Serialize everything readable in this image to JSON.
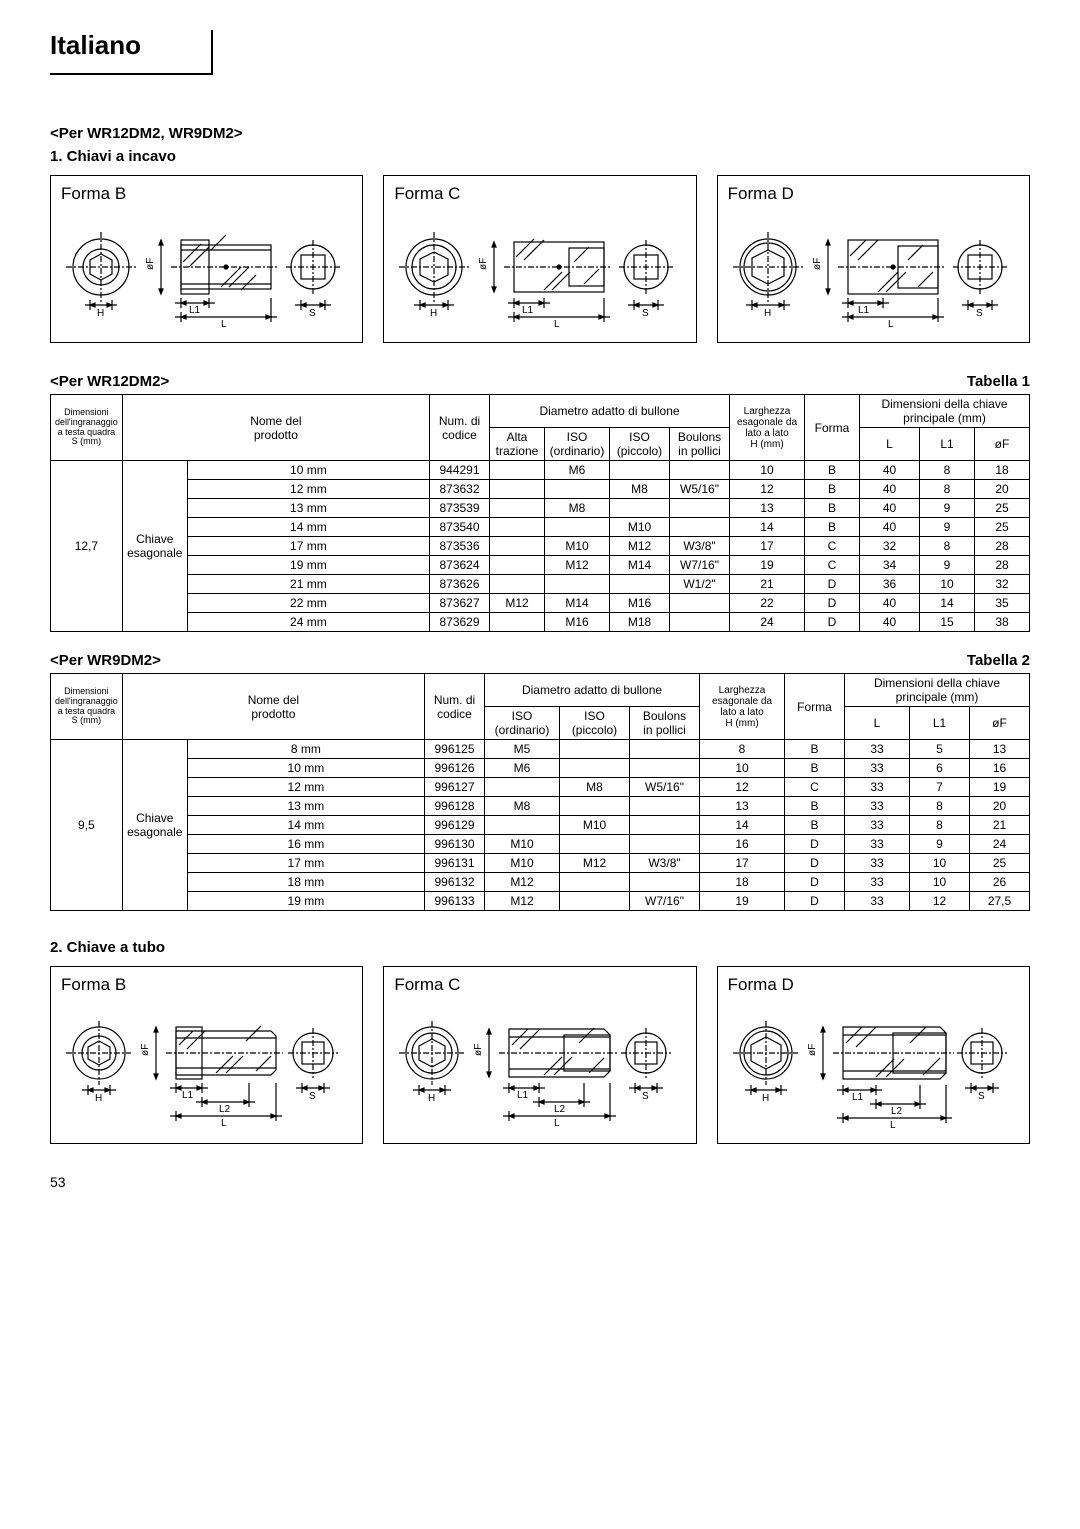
{
  "page": {
    "language_header": "Italiano",
    "page_number": "53"
  },
  "section1": {
    "title": "<Per WR12DM2, WR9DM2>",
    "subtitle": "1.  Chiavi a incavo",
    "forms": {
      "b": "Forma B",
      "c": "Forma C",
      "d": "Forma D"
    },
    "dim_labels": {
      "of": "øF",
      "h": "H",
      "l1": "L1",
      "l": "L",
      "s": "S"
    }
  },
  "table1": {
    "header_left": "<Per WR12DM2>",
    "header_right": "Tabella 1",
    "headers": {
      "col1_l1": "Dimensioni",
      "col1_l2": "dell'ingranaggio",
      "col1_l3": "a testa quadra",
      "col1_l4": "S (mm)",
      "col2_l1": "Nome del",
      "col2_l2": "prodotto",
      "col3_l1": "Num. di",
      "col3_l2": "codice",
      "col_diam": "Diametro adatto di bullone",
      "col_diam_a": "Alta",
      "col_diam_a2": "trazione",
      "col_diam_b": "ISO",
      "col_diam_b2": "(ordinario)",
      "col_diam_c": "ISO",
      "col_diam_c2": "(piccolo)",
      "col_diam_d": "Boulons",
      "col_diam_d2": "in pollici",
      "col_width_l1": "Larghezza",
      "col_width_l2": "esagonale da",
      "col_width_l3": "lato a lato",
      "col_width_l4": "H (mm)",
      "col_forma": "Forma",
      "col_dim": "Dimensioni della chiave",
      "col_dim2": "principale (mm)",
      "col_L": "L",
      "col_L1": "L1",
      "col_oF": "øF"
    },
    "body": {
      "s_val": "12,7",
      "prod": "Chiave",
      "prod2": "esagonale",
      "rows": [
        {
          "size": "10 mm",
          "code": "944291",
          "a": "",
          "b": "M6",
          "c": "",
          "d": "",
          "h": "10",
          "f": "B",
          "L": "40",
          "L1": "8",
          "oF": "18"
        },
        {
          "size": "12 mm",
          "code": "873632",
          "a": "",
          "b": "",
          "c": "M8",
          "d": "W5/16\"",
          "h": "12",
          "f": "B",
          "L": "40",
          "L1": "8",
          "oF": "20"
        },
        {
          "size": "13 mm",
          "code": "873539",
          "a": "",
          "b": "M8",
          "c": "",
          "d": "",
          "h": "13",
          "f": "B",
          "L": "40",
          "L1": "9",
          "oF": "25"
        },
        {
          "size": "14 mm",
          "code": "873540",
          "a": "",
          "b": "",
          "c": "M10",
          "d": "",
          "h": "14",
          "f": "B",
          "L": "40",
          "L1": "9",
          "oF": "25"
        },
        {
          "size": "17 mm",
          "code": "873536",
          "a": "",
          "b": "M10",
          "c": "M12",
          "d": "W3/8\"",
          "h": "17",
          "f": "C",
          "L": "32",
          "L1": "8",
          "oF": "28"
        },
        {
          "size": "19 mm",
          "code": "873624",
          "a": "",
          "b": "M12",
          "c": "M14",
          "d": "W7/16\"",
          "h": "19",
          "f": "C",
          "L": "34",
          "L1": "9",
          "oF": "28"
        },
        {
          "size": "21 mm",
          "code": "873626",
          "a": "",
          "b": "",
          "c": "",
          "d": "W1/2\"",
          "h": "21",
          "f": "D",
          "L": "36",
          "L1": "10",
          "oF": "32"
        },
        {
          "size": "22 mm",
          "code": "873627",
          "a": "M12",
          "b": "M14",
          "c": "M16",
          "d": "",
          "h": "22",
          "f": "D",
          "L": "40",
          "L1": "14",
          "oF": "35"
        },
        {
          "size": "24 mm",
          "code": "873629",
          "a": "",
          "b": "M16",
          "c": "M18",
          "d": "",
          "h": "24",
          "f": "D",
          "L": "40",
          "L1": "15",
          "oF": "38"
        }
      ]
    }
  },
  "table2": {
    "header_left": "<Per WR9DM2>",
    "header_right": "Tabella 2",
    "body": {
      "s_val": "9,5",
      "prod": "Chiave",
      "prod2": "esagonale",
      "rows": [
        {
          "size": "8 mm",
          "code": "996125",
          "b": "M5",
          "c": "",
          "d": "",
          "h": "8",
          "f": "B",
          "L": "33",
          "L1": "5",
          "oF": "13"
        },
        {
          "size": "10 mm",
          "code": "996126",
          "b": "M6",
          "c": "",
          "d": "",
          "h": "10",
          "f": "B",
          "L": "33",
          "L1": "6",
          "oF": "16"
        },
        {
          "size": "12 mm",
          "code": "996127",
          "b": "",
          "c": "M8",
          "d": "W5/16\"",
          "h": "12",
          "f": "C",
          "L": "33",
          "L1": "7",
          "oF": "19"
        },
        {
          "size": "13 mm",
          "code": "996128",
          "b": "M8",
          "c": "",
          "d": "",
          "h": "13",
          "f": "B",
          "L": "33",
          "L1": "8",
          "oF": "20"
        },
        {
          "size": "14 mm",
          "code": "996129",
          "b": "",
          "c": "M10",
          "d": "",
          "h": "14",
          "f": "B",
          "L": "33",
          "L1": "8",
          "oF": "21"
        },
        {
          "size": "16 mm",
          "code": "996130",
          "b": "M10",
          "c": "",
          "d": "",
          "h": "16",
          "f": "D",
          "L": "33",
          "L1": "9",
          "oF": "24"
        },
        {
          "size": "17 mm",
          "code": "996131",
          "b": "M10",
          "c": "M12",
          "d": "W3/8\"",
          "h": "17",
          "f": "D",
          "L": "33",
          "L1": "10",
          "oF": "25"
        },
        {
          "size": "18 mm",
          "code": "996132",
          "b": "M12",
          "c": "",
          "d": "",
          "h": "18",
          "f": "D",
          "L": "33",
          "L1": "10",
          "oF": "26"
        },
        {
          "size": "19 mm",
          "code": "996133",
          "b": "M12",
          "c": "",
          "d": "W7/16\"",
          "h": "19",
          "f": "D",
          "L": "33",
          "L1": "12",
          "oF": "27,5"
        }
      ]
    }
  },
  "section2": {
    "subtitle": "2.  Chiave a tubo",
    "forms": {
      "b": "Forma B",
      "c": "Forma C",
      "d": "Forma D"
    },
    "dim_labels": {
      "of": "øF",
      "h": "H",
      "l1": "L1",
      "l2": "L2",
      "l": "L",
      "s": "S"
    }
  },
  "style": {
    "stroke": "#000000",
    "stroke_width": 1.2,
    "font_size_diag": 10
  }
}
